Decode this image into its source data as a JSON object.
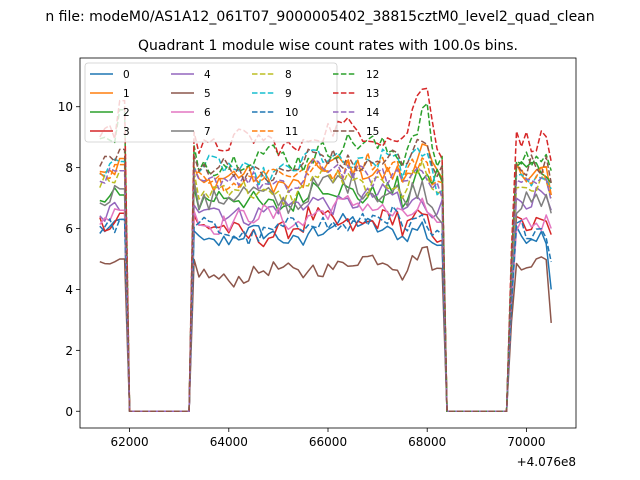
{
  "suptitle": "n file: modeM0/AS1A12_061T07_9000005402_38815cztM0_level2_quad_clean",
  "chart_data": {
    "type": "line",
    "title": "Quadrant 1 module wise count rates with 100.0s bins.",
    "xlabel": "",
    "ylabel": "",
    "xlim": [
      61000,
      71000
    ],
    "ylim": [
      -0.55,
      11.6
    ],
    "x_offset_label": "+4.076e8",
    "xticks": [
      62000,
      64000,
      66000,
      68000,
      70000
    ],
    "xtick_labels": [
      "62000",
      "64000",
      "66000",
      "68000",
      "70000"
    ],
    "yticks": [
      0,
      2,
      4,
      6,
      8,
      10
    ],
    "ytick_labels": [
      "0",
      "2",
      "4",
      "6",
      "8",
      "10"
    ],
    "grid": false,
    "legend_position": "top-left",
    "legend_columns": 4,
    "segments": [
      {
        "start": 61400,
        "end": 61900
      },
      {
        "start": 63300,
        "end": 68300
      },
      {
        "start": 69700,
        "end": 70550
      }
    ],
    "gap_points": [
      [
        62000,
        0.0
      ],
      [
        62100,
        0.0
      ],
      [
        62500,
        0.0
      ],
      [
        63000,
        0.0
      ],
      [
        63200,
        0.0
      ],
      [
        68400,
        0.0
      ],
      [
        68500,
        0.0
      ],
      [
        69000,
        0.0
      ],
      [
        69500,
        0.0
      ],
      [
        69600,
        0.0
      ]
    ],
    "series": [
      {
        "name": "0",
        "color": "#1f77b4",
        "dash": false,
        "first": 6.0,
        "level": 5.7,
        "peak": 6.2,
        "post": 5.8,
        "last": 4.0,
        "noise": 0.25
      },
      {
        "name": "1",
        "color": "#ff7f0e",
        "dash": false,
        "first": 8.0,
        "level": 7.6,
        "peak": 8.9,
        "post": 7.9,
        "last": 7.1,
        "noise": 0.3
      },
      {
        "name": "2",
        "color": "#2ca02c",
        "dash": false,
        "first": 6.8,
        "level": 6.9,
        "peak": 8.0,
        "post": 8.0,
        "last": 7.5,
        "noise": 0.35
      },
      {
        "name": "3",
        "color": "#d62728",
        "dash": false,
        "first": 6.2,
        "level": 5.9,
        "peak": 6.6,
        "post": 6.1,
        "last": 5.8,
        "noise": 0.3
      },
      {
        "name": "4",
        "color": "#9467bd",
        "dash": false,
        "first": 6.3,
        "level": 6.6,
        "peak": 7.1,
        "post": 7.0,
        "last": 6.6,
        "noise": 0.3
      },
      {
        "name": "5",
        "color": "#8c564b",
        "dash": false,
        "first": 4.7,
        "level": 4.5,
        "peak": 5.6,
        "post": 4.9,
        "last": 2.9,
        "noise": 0.22
      },
      {
        "name": "6",
        "color": "#e377c2",
        "dash": false,
        "first": 6.3,
        "level": 6.3,
        "peak": 6.9,
        "post": 6.2,
        "last": 6.0,
        "noise": 0.3
      },
      {
        "name": "7",
        "color": "#7f7f7f",
        "dash": false,
        "first": 7.0,
        "level": 7.0,
        "peak": 7.6,
        "post": 6.8,
        "last": 6.5,
        "noise": 0.35
      },
      {
        "name": "8",
        "color": "#bcbd22",
        "dash": true,
        "first": 7.6,
        "level": 7.2,
        "peak": 8.3,
        "post": 7.4,
        "last": 7.0,
        "noise": 0.3
      },
      {
        "name": "9",
        "color": "#17becf",
        "dash": true,
        "first": 7.9,
        "level": 7.9,
        "peak": 8.7,
        "post": 7.7,
        "last": 7.3,
        "noise": 0.3
      },
      {
        "name": "10",
        "color": "#1f77b4",
        "dash": true,
        "first": 6.0,
        "level": 5.9,
        "peak": 6.3,
        "post": 6.0,
        "last": 4.9,
        "noise": 0.28
      },
      {
        "name": "11",
        "color": "#ff7f0e",
        "dash": true,
        "first": 7.8,
        "level": 7.7,
        "peak": 8.5,
        "post": 7.8,
        "last": 7.1,
        "noise": 0.3
      },
      {
        "name": "12",
        "color": "#2ca02c",
        "dash": true,
        "first": 8.9,
        "level": 8.3,
        "peak": 10.2,
        "post": 8.3,
        "last": 7.9,
        "noise": 0.35
      },
      {
        "name": "13",
        "color": "#d62728",
        "dash": true,
        "first": 9.2,
        "level": 8.8,
        "peak": 11.3,
        "post": 8.9,
        "last": 8.2,
        "noise": 0.32
      },
      {
        "name": "14",
        "color": "#9467bd",
        "dash": true,
        "first": 7.6,
        "level": 7.5,
        "peak": 8.3,
        "post": 7.5,
        "last": 6.9,
        "noise": 0.3
      },
      {
        "name": "15",
        "color": "#8c564b",
        "dash": true,
        "first": 8.3,
        "level": 7.9,
        "peak": 9.3,
        "post": 8.1,
        "last": 7.5,
        "noise": 0.3
      }
    ]
  }
}
